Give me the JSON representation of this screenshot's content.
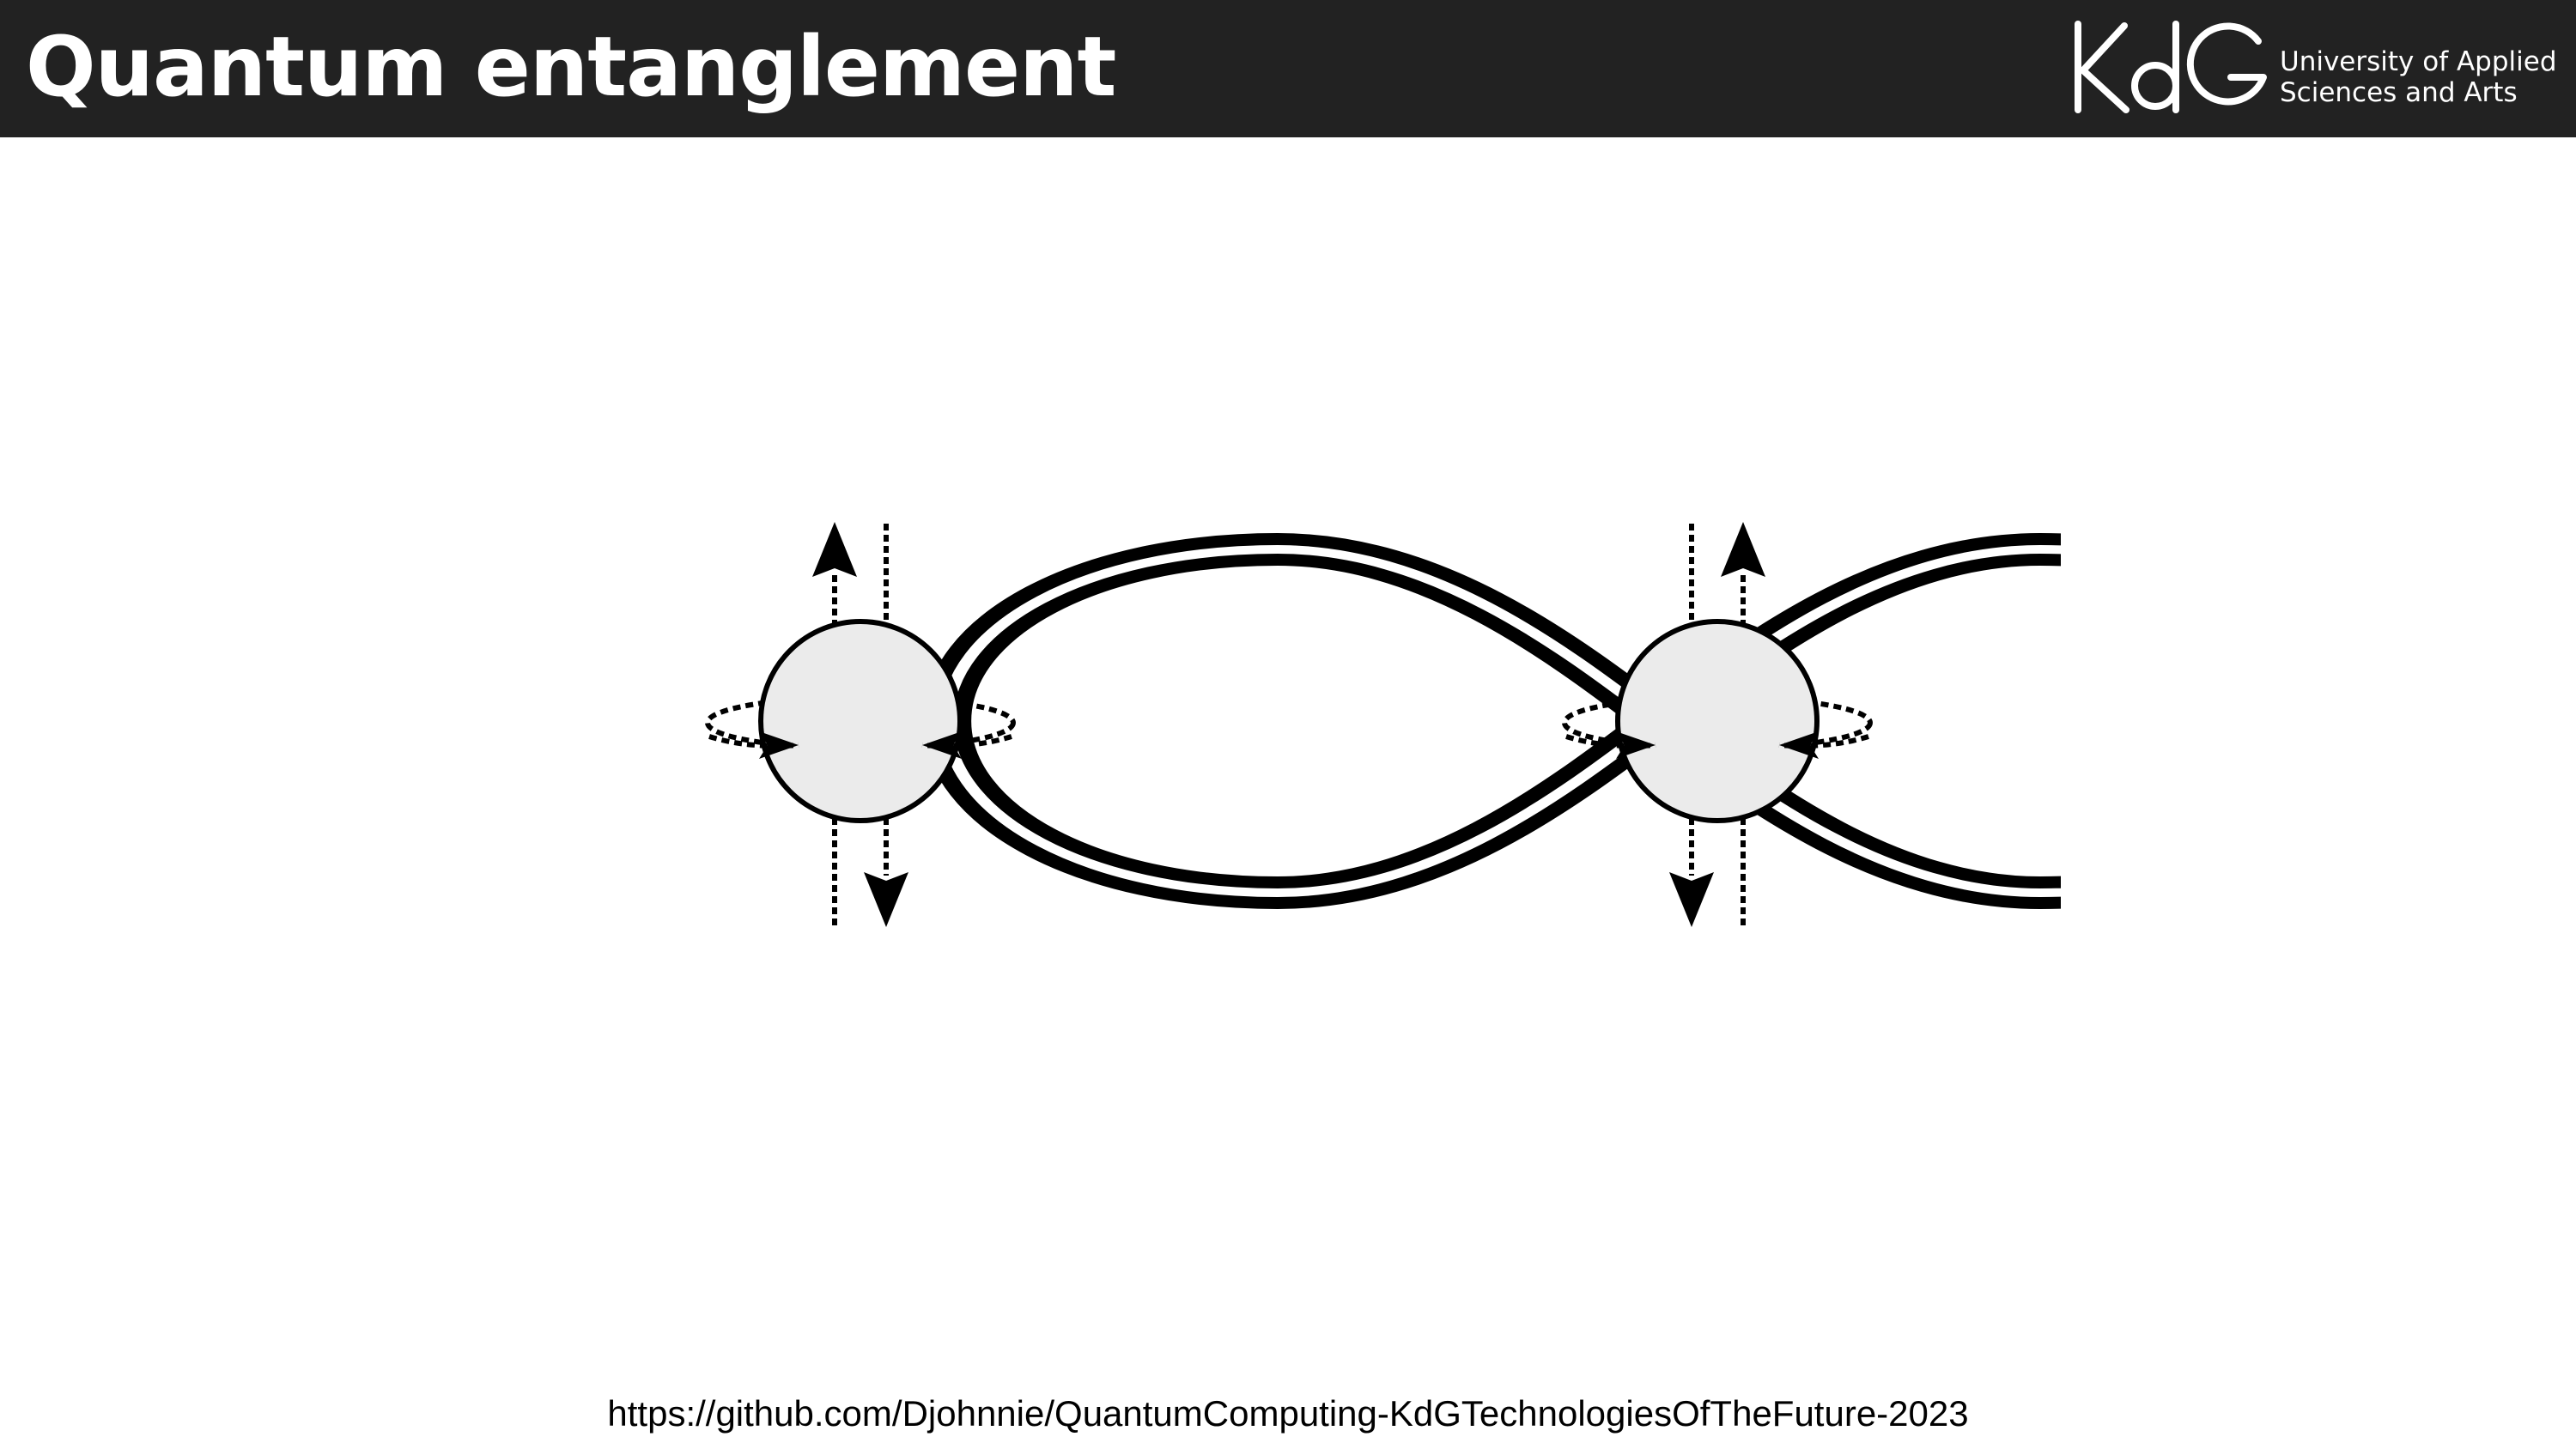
{
  "slide": {
    "title": "Quantum entanglement",
    "source_link": "https://github.com/Djohnnie/QuantumComputing-KdGTechnologiesOfTheFuture-2023"
  },
  "logo": {
    "mark": "KdG",
    "line1": "University of Applied",
    "line2": "Sciences and Arts"
  },
  "diagram": {
    "icon": "entangled-particles-infinity-icon",
    "left_particle": {
      "spin_arrows": [
        "up",
        "down"
      ]
    },
    "right_particle": {
      "spin_arrows": [
        "up",
        "down"
      ]
    }
  },
  "colors": {
    "header_bg": "#222222",
    "header_text": "#ffffff",
    "particle_fill": "#ebebeb",
    "line": "#000000"
  }
}
